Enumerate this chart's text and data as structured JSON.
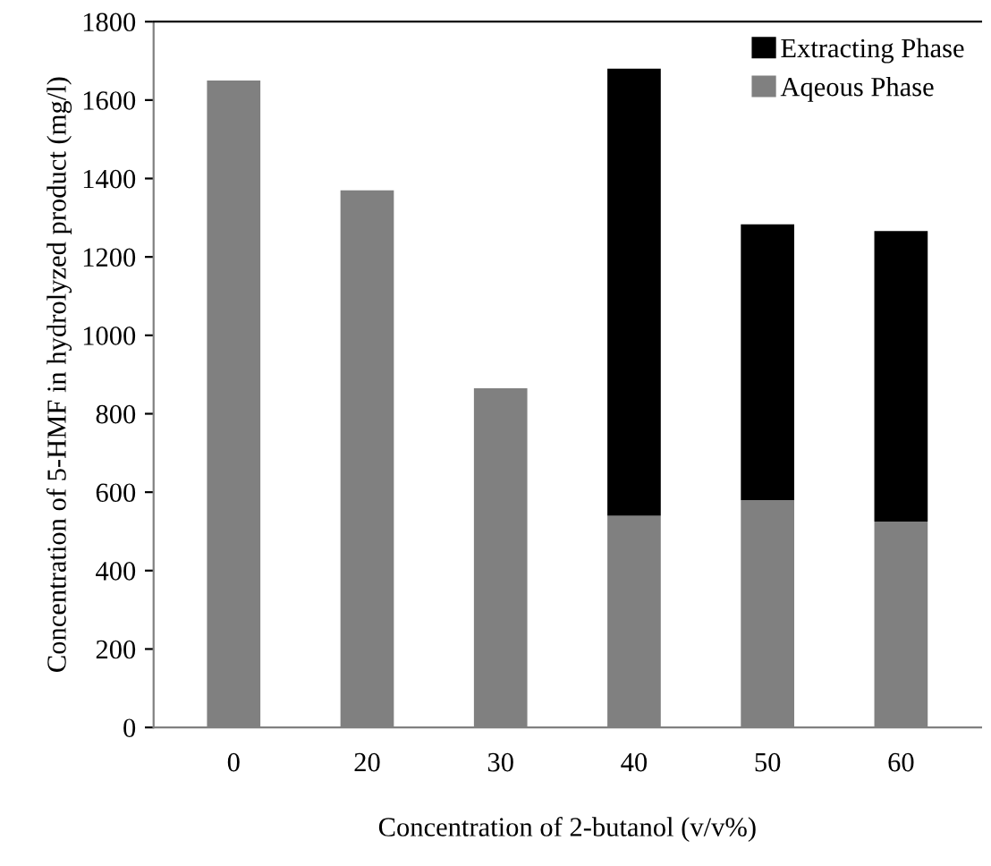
{
  "chart_data": {
    "type": "bar",
    "stacked": true,
    "xlabel": "Concentration of 2-butanol (v/v%)",
    "ylabel": "Concentration of 5-HMF in hydrolyzed product (mg/l)",
    "categories": [
      "0",
      "20",
      "30",
      "40",
      "50",
      "60"
    ],
    "series": [
      {
        "name": "Aqeous Phase",
        "color": "#808080",
        "values": [
          1650,
          1370,
          865,
          540,
          580,
          525
        ]
      },
      {
        "name": "Extracting Phase",
        "color": "#000000",
        "values": [
          null,
          null,
          null,
          1140,
          703,
          741
        ]
      }
    ],
    "ylim": [
      0,
      1800
    ],
    "yticks": [
      0,
      200,
      400,
      600,
      800,
      1000,
      1200,
      1400,
      1600,
      1800
    ],
    "grid": false,
    "legend": "top right"
  }
}
